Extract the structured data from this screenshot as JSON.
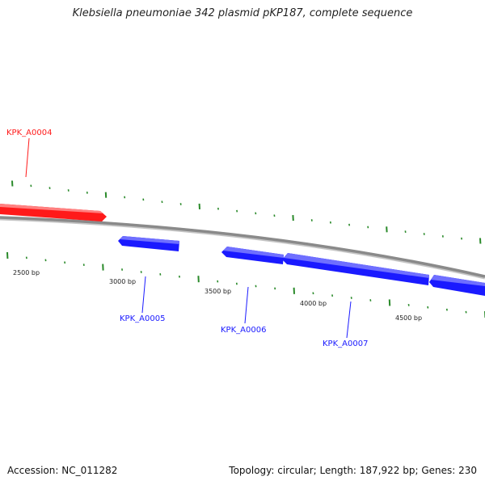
{
  "title": "Klebsiella pneumoniae 342 plasmid pKP187, complete sequence",
  "footer": {
    "accession": "Accession: NC_011282",
    "summary": "Topology: circular; Length: 187,922 bp; Genes: 230"
  },
  "colors": {
    "forward_gene": "#ff1a1a",
    "reverse_gene": "#1a1aff",
    "backbone": "#8a8a8a",
    "ticks": "#2a8a2a"
  },
  "genes": [
    {
      "id": "gene-kpk-a0004",
      "label": "KPK_A0004",
      "strand": "forward"
    },
    {
      "id": "gene-kpk-a0005",
      "label": "KPK_A0005",
      "strand": "reverse"
    },
    {
      "id": "gene-kpk-a0006",
      "label": "KPK_A0006",
      "strand": "reverse"
    },
    {
      "id": "gene-kpk-a0007",
      "label": "KPK_A0007",
      "strand": "reverse"
    }
  ],
  "scale_labels": [
    "2500 bp",
    "3000 bp",
    "3500 bp",
    "4000 bp",
    "4500 bp"
  ]
}
